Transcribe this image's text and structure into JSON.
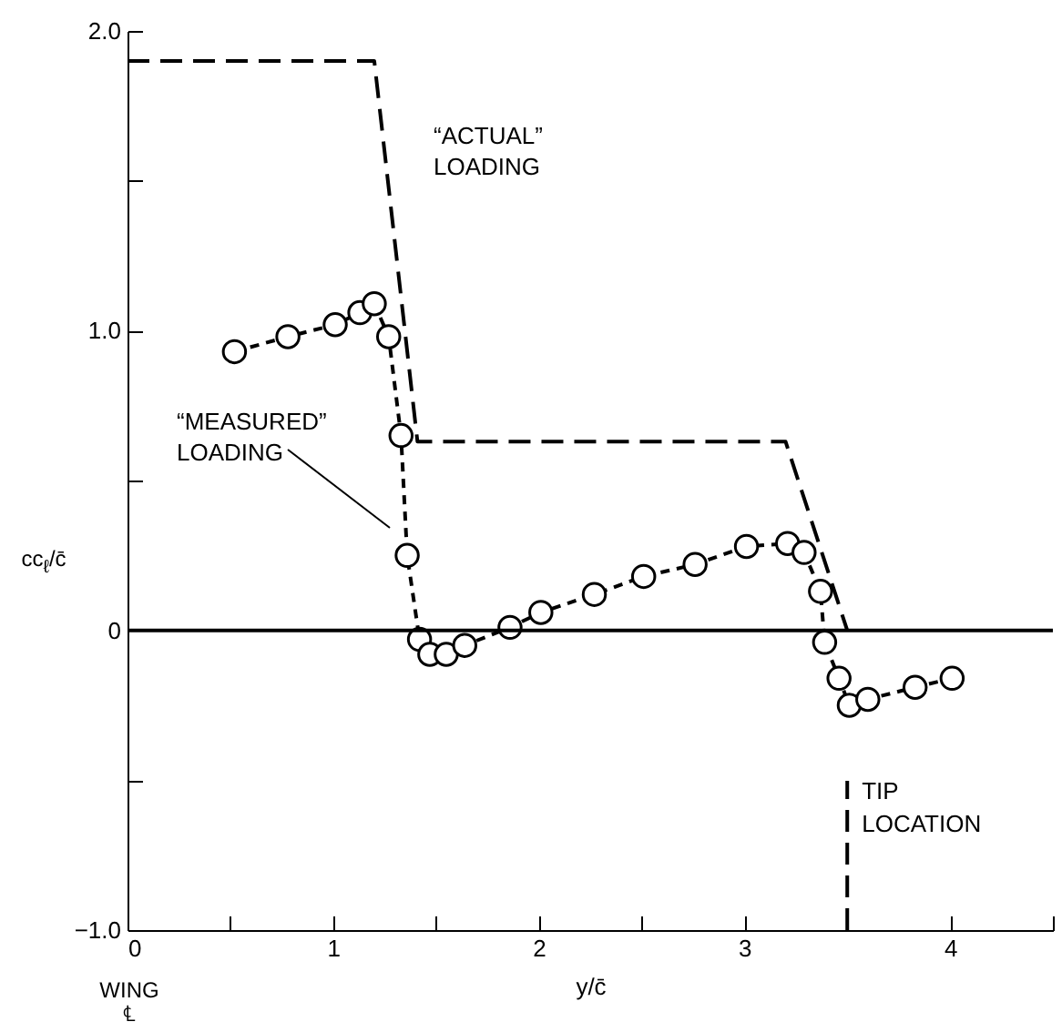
{
  "chart_data": {
    "type": "line",
    "xlabel": "y/c̄",
    "ylabel": "cc$_{ℓ}$/c̄",
    "series": [
      {
        "name": "“ACTUAL” LOADING",
        "color": "#000000",
        "line_style": "dashed",
        "marker": "none",
        "x": [
          0,
          1.2,
          1.41,
          3.2,
          3.5
        ],
        "values": [
          1.9,
          1.9,
          0.63,
          0.63,
          0
        ]
      },
      {
        "name": "“MEASURED” LOADING",
        "color": "#000000",
        "line_style": "dotted",
        "marker": "circle",
        "x": [
          0.52,
          0.78,
          1.01,
          1.13,
          1.2,
          1.27,
          1.33,
          1.36,
          1.42,
          1.47,
          1.55,
          1.64,
          1.86,
          2.01,
          2.27,
          2.51,
          2.76,
          3.01,
          3.21,
          3.29,
          3.37,
          3.39,
          3.46,
          3.51,
          3.6,
          3.83,
          4.01
        ],
        "values": [
          0.93,
          0.98,
          1.02,
          1.06,
          1.09,
          0.98,
          0.65,
          0.25,
          -0.03,
          -0.08,
          -0.08,
          -0.05,
          0.01,
          0.06,
          0.12,
          0.18,
          0.22,
          0.28,
          0.29,
          0.26,
          0.13,
          -0.04,
          -0.16,
          -0.25,
          -0.23,
          -0.19,
          -0.16
        ]
      }
    ],
    "xlim": [
      0,
      4.5
    ],
    "xticks": [
      0,
      {
        "value": 0.5,
        "label": null
      },
      1,
      {
        "value": 1.5,
        "label": null
      },
      2,
      {
        "value": 2.5,
        "label": null
      },
      3,
      {
        "value": 3.5,
        "label": null
      },
      4,
      {
        "value": 4.5,
        "label": null
      }
    ],
    "ylim": [
      -1,
      2
    ],
    "yticks": [
      {
        "value": -1,
        "label": "−1.0"
      },
      {
        "value": -0.5,
        "label": null
      },
      0,
      {
        "value": 0.5,
        "label": null
      },
      {
        "value": 1,
        "label": "1.0"
      },
      {
        "value": 1.5,
        "label": null
      },
      {
        "value": 2,
        "label": "2.0"
      }
    ],
    "ref_lines": [
      {
        "axis": "y",
        "value": 0
      },
      {
        "axis": "x",
        "value": 3.5,
        "label": "TIP LOCATION",
        "line_style": "dashed"
      }
    ],
    "annotations": [
      "WING ℄"
    ],
    "grid": false
  }
}
